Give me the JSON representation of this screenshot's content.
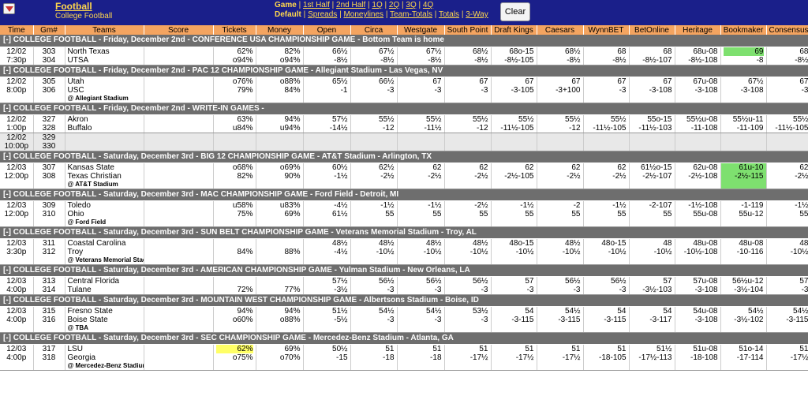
{
  "header": {
    "menu_icon": "chevron-down-icon",
    "sport": "Football",
    "league": "College Football",
    "nav_row1": [
      {
        "label": "Game",
        "bold": true
      },
      {
        "label": "1st Half"
      },
      {
        "label": "2nd Half"
      },
      {
        "label": "1Q"
      },
      {
        "label": "2Q"
      },
      {
        "label": "3Q"
      },
      {
        "label": "4Q"
      }
    ],
    "nav_row2": [
      {
        "label": "Default",
        "bold": true
      },
      {
        "label": "Spreads"
      },
      {
        "label": "Moneylines"
      },
      {
        "label": "Team-Totals"
      },
      {
        "label": "Totals"
      },
      {
        "label": "3-Way"
      }
    ],
    "clear_label": "Clear"
  },
  "columns": [
    "Time",
    "Gm#",
    "Teams",
    "Score",
    "Tickets",
    "Money",
    "Open",
    "Circa",
    "Westgate",
    "South Point",
    "Draft Kings",
    "Caesars",
    "WynnBET",
    "BetOnline",
    "Heritage",
    "Bookmaker",
    "Consensus"
  ],
  "colors": {
    "header_bg": "#1a1f8a",
    "link": "#ffd84d",
    "col_header": "#f4a460",
    "section": "#6e6e6e",
    "highlight_green": "#7ee06f",
    "highlight_yellow": "#ffff66"
  },
  "sections": [
    {
      "title": "COLLEGE FOOTBALL - Friday, December 2nd - CONFERENCE USA CHAMPIONSHIP GAME - Bottom Team is home",
      "games": [
        {
          "date": "12/02",
          "time": "7:30p",
          "gm": [
            "303",
            "304"
          ],
          "teams": [
            "North Texas",
            "UTSA"
          ],
          "venue": "",
          "tickets": [
            "62%",
            "o94%"
          ],
          "money": [
            "82%",
            "o94%"
          ],
          "books": [
            [
              "66½",
              "-8½"
            ],
            [
              "67½",
              "-8½"
            ],
            [
              "67½",
              "-8½"
            ],
            [
              "68½",
              "-8½"
            ],
            [
              "68o-15",
              "-8½-105"
            ],
            [
              "68½",
              "-8½"
            ],
            [
              "68",
              "-8½"
            ],
            [
              "68",
              "-8½-107"
            ],
            [
              "68u-08",
              "-8½-108"
            ],
            [
              "69",
              "-8"
            ],
            [
              "68",
              "-8½"
            ]
          ],
          "hl": {
            "9": "g0"
          }
        }
      ]
    },
    {
      "title": "COLLEGE FOOTBALL - Friday, December 2nd - PAC 12 CHAMPIONSHIP GAME - Allegiant Stadium - Las Vegas, NV",
      "games": [
        {
          "date": "12/02",
          "time": "8:00p",
          "gm": [
            "305",
            "306"
          ],
          "teams": [
            "Utah",
            "USC"
          ],
          "venue": "@ Allegiant Stadium",
          "tickets": [
            "o76%",
            "79%"
          ],
          "money": [
            "o88%",
            "84%"
          ],
          "books": [
            [
              "65½",
              "-1"
            ],
            [
              "66½",
              "-3"
            ],
            [
              "67",
              "-3"
            ],
            [
              "67",
              "-3"
            ],
            [
              "67",
              "-3-105"
            ],
            [
              "67",
              "-3+100"
            ],
            [
              "67",
              "-3"
            ],
            [
              "67",
              "-3-108"
            ],
            [
              "67u-08",
              "-3-108"
            ],
            [
              "67½",
              "-3-108"
            ],
            [
              "67",
              "-3"
            ]
          ],
          "hl": {}
        }
      ]
    },
    {
      "title": "COLLEGE FOOTBALL - Friday, December 2nd - WRITE-IN GAMES -",
      "games": [
        {
          "date": "12/02",
          "time": "1:00p",
          "gm": [
            "327",
            "328"
          ],
          "teams": [
            "Akron",
            "Buffalo"
          ],
          "venue": "",
          "tickets": [
            "63%",
            "u84%"
          ],
          "money": [
            "94%",
            "u94%"
          ],
          "books": [
            [
              "57½",
              "-14½"
            ],
            [
              "55½",
              "-12"
            ],
            [
              "55½",
              "-11½"
            ],
            [
              "55½",
              "-12"
            ],
            [
              "55½",
              "-11½-105"
            ],
            [
              "55½",
              "-12"
            ],
            [
              "55½",
              "-11½-105"
            ],
            [
              "55o-15",
              "-11½-103"
            ],
            [
              "55½u-08",
              "-11-108"
            ],
            [
              "55½u-11",
              "-11-109"
            ],
            [
              "55½",
              "-11½-105"
            ]
          ],
          "hl": {}
        },
        {
          "date": "12/02",
          "time": "10:00p",
          "gm": [
            "329",
            "330"
          ],
          "teams": [
            "",
            ""
          ],
          "venue": "",
          "tickets": [
            "",
            ""
          ],
          "money": [
            "",
            ""
          ],
          "books": [
            [
              "",
              ""
            ],
            [
              "",
              ""
            ],
            [
              "",
              ""
            ],
            [
              "",
              ""
            ],
            [
              "",
              ""
            ],
            [
              "",
              ""
            ],
            [
              "",
              ""
            ],
            [
              "",
              ""
            ],
            [
              "",
              ""
            ],
            [
              "",
              ""
            ],
            [
              "",
              ""
            ]
          ],
          "hl": {},
          "shade": true
        }
      ]
    },
    {
      "title": "COLLEGE FOOTBALL - Saturday, December 3rd - BIG 12 CHAMPIONSHIP GAME - AT&T Stadium - Arlington, TX",
      "games": [
        {
          "date": "12/03",
          "time": "12:00p",
          "gm": [
            "307",
            "308"
          ],
          "teams": [
            "Kansas State",
            "Texas Christian"
          ],
          "venue": "@ AT&T Stadium",
          "tickets": [
            "o68%",
            "82%"
          ],
          "money": [
            "o69%",
            "90%"
          ],
          "books": [
            [
              "60½",
              "-1½"
            ],
            [
              "62½",
              "-2½"
            ],
            [
              "62",
              "-2½"
            ],
            [
              "62",
              "-2½"
            ],
            [
              "62",
              "-2½-105"
            ],
            [
              "62",
              "-2½"
            ],
            [
              "62",
              "-2½"
            ],
            [
              "61½o-15",
              "-2½-107"
            ],
            [
              "62u-08",
              "-2½-108"
            ],
            [
              "61u-10",
              "-2½-115"
            ],
            [
              "62",
              "-2½"
            ]
          ],
          "hl": {
            "9": "g"
          }
        }
      ]
    },
    {
      "title": "COLLEGE FOOTBALL - Saturday, December 3rd - MAC CHAMPIONSHIP GAME - Ford Field - Detroit, MI",
      "games": [
        {
          "date": "12/03",
          "time": "12:00p",
          "gm": [
            "309",
            "310"
          ],
          "teams": [
            "Toledo",
            "Ohio"
          ],
          "venue": "@ Ford Field",
          "tickets": [
            "u58%",
            "75%"
          ],
          "money": [
            "u83%",
            "69%"
          ],
          "books": [
            [
              "-4½",
              "61½"
            ],
            [
              "-1½",
              "55"
            ],
            [
              "-1½",
              "55"
            ],
            [
              "-2½",
              "55"
            ],
            [
              "-1½",
              "55"
            ],
            [
              "-2",
              "55"
            ],
            [
              "-1½",
              "55"
            ],
            [
              "-2-107",
              "55"
            ],
            [
              "-1½-108",
              "55u-08"
            ],
            [
              "-1-119",
              "55u-12"
            ],
            [
              "-1½",
              "55"
            ]
          ],
          "hl": {}
        }
      ]
    },
    {
      "title": "COLLEGE FOOTBALL - Saturday, December 3rd - SUN BELT CHAMPIONSHIP GAME - Veterans Memorial Stadium - Troy, AL",
      "games": [
        {
          "date": "12/03",
          "time": "3:30p",
          "gm": [
            "311",
            "312"
          ],
          "teams": [
            "Coastal Carolina",
            "Troy"
          ],
          "venue": "@ Veterans Memorial Stadium",
          "tickets": [
            "",
            "84%"
          ],
          "money": [
            "",
            "88%"
          ],
          "books": [
            [
              "48½",
              "-4½"
            ],
            [
              "48½",
              "-10½"
            ],
            [
              "48½",
              "-10½"
            ],
            [
              "48½",
              "-10½"
            ],
            [
              "48o-15",
              "-10½"
            ],
            [
              "48½",
              "-10½"
            ],
            [
              "48o-15",
              "-10½"
            ],
            [
              "48",
              "-10½"
            ],
            [
              "48u-08",
              "-10½-108"
            ],
            [
              "48u-08",
              "-10-116"
            ],
            [
              "48",
              "-10½"
            ]
          ],
          "hl": {}
        }
      ]
    },
    {
      "title": "COLLEGE FOOTBALL - Saturday, December 3rd - AMERICAN CHAMPIONSHIP GAME - Yulman Stadium - New Orleans, LA",
      "games": [
        {
          "date": "12/03",
          "time": "4:00p",
          "gm": [
            "313",
            "314"
          ],
          "teams": [
            "Central Florida",
            "Tulane"
          ],
          "venue": "",
          "tickets": [
            "",
            "72%"
          ],
          "money": [
            "",
            "77%"
          ],
          "books": [
            [
              "57½",
              "-3½"
            ],
            [
              "56½",
              "-3"
            ],
            [
              "56½",
              "-3"
            ],
            [
              "56½",
              "-3"
            ],
            [
              "57",
              "-3"
            ],
            [
              "56½",
              "-3"
            ],
            [
              "56½",
              "-3"
            ],
            [
              "57",
              "-3½-103"
            ],
            [
              "57u-08",
              "-3-108"
            ],
            [
              "56½u-12",
              "-3½-104"
            ],
            [
              "57",
              "-3"
            ]
          ],
          "hl": {}
        }
      ]
    },
    {
      "title": "COLLEGE FOOTBALL - Saturday, December 3rd - MOUNTAIN WEST CHAMPIONSHIP GAME - Albertsons Stadium - Boise, ID",
      "games": [
        {
          "date": "12/03",
          "time": "4:00p",
          "gm": [
            "315",
            "316"
          ],
          "teams": [
            "Fresno State",
            "Boise State"
          ],
          "venue": "@ TBA",
          "tickets": [
            "94%",
            "o60%"
          ],
          "money": [
            "94%",
            "o88%"
          ],
          "books": [
            [
              "51½",
              "-5½"
            ],
            [
              "54½",
              "-3"
            ],
            [
              "54½",
              "-3"
            ],
            [
              "53½",
              "-3"
            ],
            [
              "54",
              "-3-115"
            ],
            [
              "54½",
              "-3-115"
            ],
            [
              "54",
              "-3-115"
            ],
            [
              "54",
              "-3-117"
            ],
            [
              "54u-08",
              "-3-108"
            ],
            [
              "54½",
              "-3½-102"
            ],
            [
              "54½",
              "-3-115"
            ]
          ],
          "hl": {}
        }
      ]
    },
    {
      "title": "COLLEGE FOOTBALL - Saturday, December 3rd - SEC CHAMPIONSHIP GAME - Mercedez-Benz Stadium - Atlanta, GA",
      "games": [
        {
          "date": "12/03",
          "time": "4:00p",
          "gm": [
            "317",
            "318"
          ],
          "teams": [
            "LSU",
            "Georgia"
          ],
          "venue": "@ Mercedez-Benz Stadium",
          "tickets": [
            "62%",
            "o75%"
          ],
          "money": [
            "69%",
            "o70%"
          ],
          "books": [
            [
              "50½",
              "-15"
            ],
            [
              "51",
              "-18"
            ],
            [
              "51",
              "-18"
            ],
            [
              "51",
              "-17½"
            ],
            [
              "51",
              "-17½"
            ],
            [
              "51",
              "-17½"
            ],
            [
              "51",
              "-18-105"
            ],
            [
              "51½",
              "-17½-113"
            ],
            [
              "51u-08",
              "-18-108"
            ],
            [
              "51o-14",
              "-17-114"
            ],
            [
              "51",
              "-17½"
            ]
          ],
          "hl": {
            "tickets": "y0"
          }
        }
      ]
    }
  ]
}
